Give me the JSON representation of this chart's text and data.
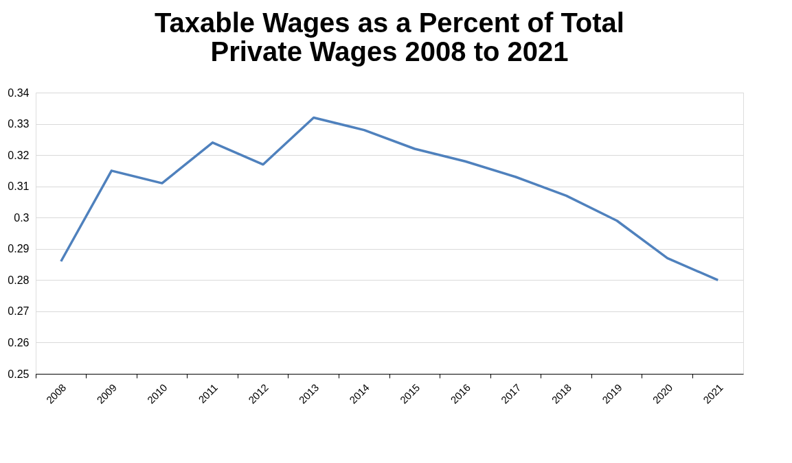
{
  "chart_data": {
    "type": "line",
    "title": [
      "Taxable Wages as a Percent of Total",
      "Private Wages 2008 to 2021"
    ],
    "categories": [
      "2008",
      "2009",
      "2010",
      "2011",
      "2012",
      "2013",
      "2014",
      "2015",
      "2016",
      "2017",
      "2018",
      "2019",
      "2020",
      "2021"
    ],
    "series": [
      {
        "color": "#4f81bd",
        "values": [
          0.286,
          0.315,
          0.311,
          0.324,
          0.317,
          0.332,
          0.328,
          0.322,
          0.318,
          0.313,
          0.307,
          0.299,
          0.287,
          0.28
        ]
      }
    ],
    "ylim": [
      0.25,
      0.34
    ],
    "yticks": [
      0.25,
      0.26,
      0.27,
      0.28,
      0.29,
      0.3,
      0.31,
      0.32,
      0.33,
      0.34
    ],
    "grid": "y",
    "marker": "none",
    "line_style": "solid"
  }
}
